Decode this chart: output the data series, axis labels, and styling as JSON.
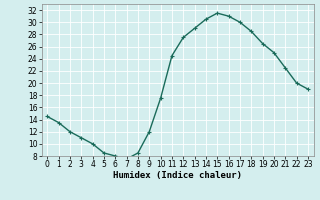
{
  "x": [
    0,
    1,
    2,
    3,
    4,
    5,
    6,
    7,
    8,
    9,
    10,
    11,
    12,
    13,
    14,
    15,
    16,
    17,
    18,
    19,
    20,
    21,
    22,
    23
  ],
  "y": [
    14.5,
    13.5,
    12,
    11,
    10,
    8.5,
    8,
    7.5,
    8.5,
    12,
    17.5,
    24.5,
    27.5,
    29,
    30.5,
    31.5,
    31,
    30,
    28.5,
    26.5,
    25,
    22.5,
    20,
    19
  ],
  "line_color": "#1a6b5a",
  "marker": "+",
  "marker_size": 3,
  "marker_lw": 0.8,
  "bg_color": "#d4eeee",
  "grid_color": "#b8d8d8",
  "xlabel": "Humidex (Indice chaleur)",
  "ylim": [
    8,
    33
  ],
  "yticks": [
    8,
    10,
    12,
    14,
    16,
    18,
    20,
    22,
    24,
    26,
    28,
    30,
    32
  ],
  "xlim": [
    -0.5,
    23.5
  ],
  "xticks": [
    0,
    1,
    2,
    3,
    4,
    5,
    6,
    7,
    8,
    9,
    10,
    11,
    12,
    13,
    14,
    15,
    16,
    17,
    18,
    19,
    20,
    21,
    22,
    23
  ],
  "xlabel_fontsize": 6.5,
  "tick_fontsize": 5.5,
  "linewidth": 1.0
}
